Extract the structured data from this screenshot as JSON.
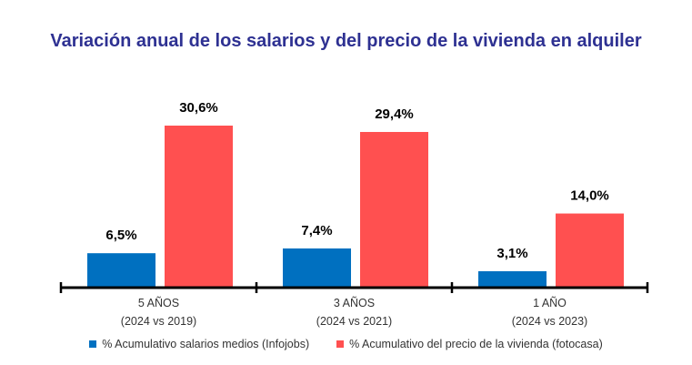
{
  "chart_data": {
    "type": "bar",
    "title": "Variación anual de los salarios y del precio de la vivienda en alquiler",
    "categories": [
      [
        "5 AÑOS",
        "(2024 vs 2019)"
      ],
      [
        "3 AÑOS",
        "(2024 vs 2021)"
      ],
      [
        "1 AÑO",
        "(2024 vs 2023)"
      ]
    ],
    "series": [
      {
        "name": "% Acumulativo salarios medios (Infojobs)",
        "values": [
          6.5,
          7.4,
          3.1
        ],
        "labels": [
          "6,5%",
          "7,4%",
          "3,1%"
        ],
        "color": "#0070C0"
      },
      {
        "name": "% Acumulativo del precio de la vivienda (fotocasa)",
        "values": [
          30.6,
          29.4,
          14.0
        ],
        "labels": [
          "30,6%",
          "29,4%",
          "14,0%"
        ],
        "color": "#FF5050"
      }
    ],
    "ylim": [
      0,
      35
    ],
    "grid": false,
    "legend": "bottom"
  }
}
